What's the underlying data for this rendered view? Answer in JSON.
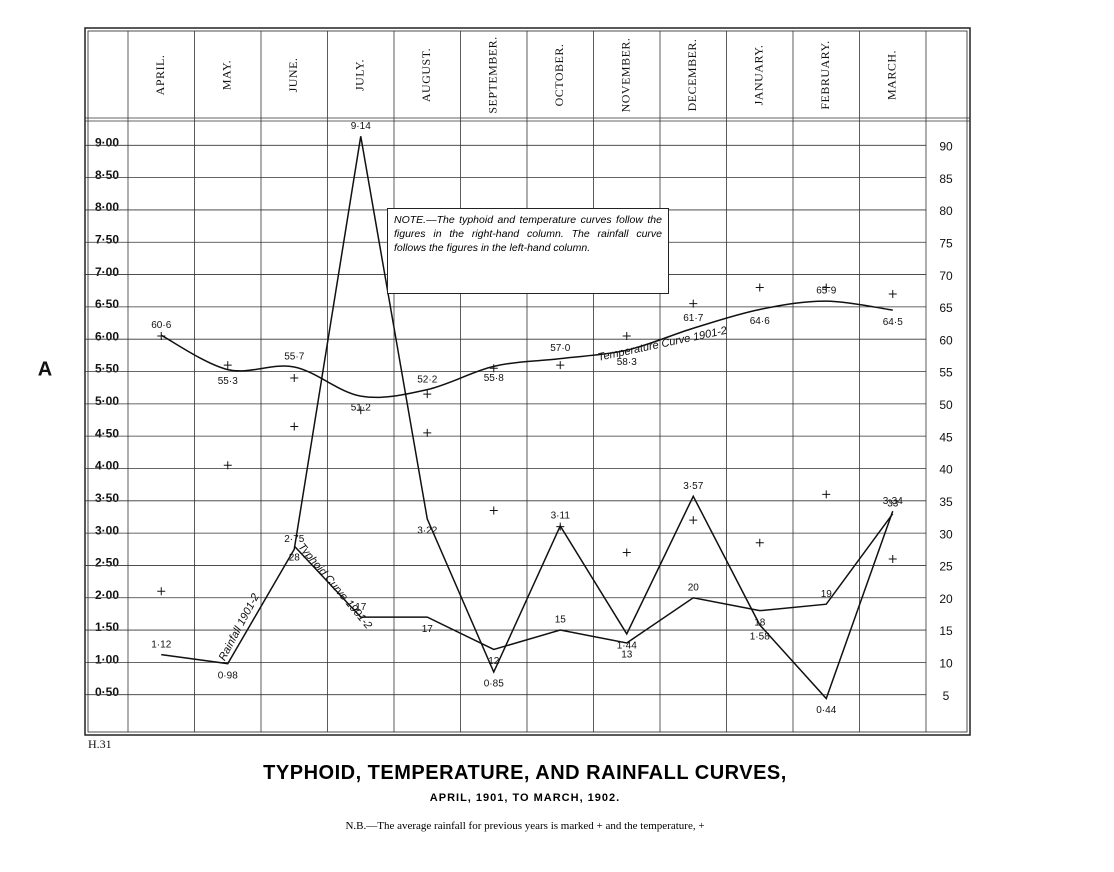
{
  "chart_data": {
    "type": "line",
    "title": "TYPHOID, TEMPERATURE, AND RAINFALL CURVES,",
    "subtitle": "APRIL, 1901, TO MARCH, 1902.",
    "footnote": "N.B.—The average rainfall for previous years is marked + and the temperature, +",
    "note": "NOTE.—The typhoid and temperature curves follow the figures in the right-hand column. The rainfall curve follows the figures in the left-hand column.",
    "side_mark": "A",
    "plate": "H.31",
    "categories": [
      "APRIL.",
      "MAY.",
      "JUNE.",
      "JULY.",
      "AUGUST.",
      "SEPTEMBER.",
      "OCTOBER.",
      "NOVEMBER.",
      "DECEMBER.",
      "JANUARY.",
      "FEBRUARY.",
      "MARCH."
    ],
    "ylim": [
      0,
      9.5
    ],
    "yticks": [
      {
        "value": 0.5,
        "label": "0·50"
      },
      {
        "value": 1,
        "label": "1·00"
      },
      {
        "value": 1.5,
        "label": "1·50"
      },
      {
        "value": 2,
        "label": "2·00"
      },
      {
        "value": 2.5,
        "label": "2·50"
      },
      {
        "value": 3,
        "label": "3·00"
      },
      {
        "value": 3.5,
        "label": "3·50"
      },
      {
        "value": 4,
        "label": "4·00"
      },
      {
        "value": 4.5,
        "label": "4·50"
      },
      {
        "value": 5,
        "label": "5·00"
      },
      {
        "value": 5.5,
        "label": "5·50"
      },
      {
        "value": 6,
        "label": "6·00"
      },
      {
        "value": 6.5,
        "label": "6·50"
      },
      {
        "value": 7,
        "label": "7·00"
      },
      {
        "value": 7.5,
        "label": "7·50"
      },
      {
        "value": 8,
        "label": "8·00"
      },
      {
        "value": 8.5,
        "label": "8·50"
      },
      {
        "value": 9,
        "label": "9·00"
      }
    ],
    "y2lim": [
      0,
      95
    ],
    "y2ticks": [
      5,
      10,
      15,
      20,
      25,
      30,
      35,
      40,
      45,
      50,
      55,
      60,
      65,
      70,
      75,
      80,
      85,
      90
    ],
    "grid": true,
    "series": [
      {
        "name": "Rainfall 1901-2",
        "color": "#111111",
        "style": "line",
        "values": [
          1.12,
          0.98,
          2.75,
          9.14,
          3.22,
          0.85,
          3.11,
          1.44,
          3.57,
          1.58,
          0.44,
          3.34
        ],
        "value_labels": [
          "1·12",
          "0·98",
          "2·75",
          "9·14",
          "3·22",
          "0·85",
          "3·11",
          "1·44",
          "3·57",
          "1·58",
          "0·44",
          "3·34"
        ]
      },
      {
        "name": "Typhoid Curve 1901-2",
        "color": "#111111",
        "style": "line",
        "axis": "y2",
        "values": [
          null,
          null,
          28,
          17,
          17,
          12,
          15,
          13,
          20,
          18,
          19,
          33
        ]
      },
      {
        "name": "Temperature Curve 1901-2",
        "color": "#111111",
        "style": "smooth",
        "axis": "y2",
        "values": [
          60.6,
          55.3,
          55.7,
          51.2,
          52.2,
          55.8,
          57.0,
          58.3,
          61.7,
          64.6,
          65.9,
          64.5
        ],
        "value_labels": [
          "60·6",
          "55·3",
          "55·7",
          "51·2",
          "52·2",
          "55·8",
          "57·0",
          "58·3",
          "61·7",
          "64·6",
          "65·9",
          "64·5"
        ]
      },
      {
        "color": "#111111",
        "style": "markers",
        "values": [
          2.1,
          4.05,
          4.65,
          null,
          4.55,
          3.35,
          3.1,
          2.7,
          3.2,
          2.85,
          3.6,
          2.6
        ]
      },
      {
        "color": "#111111",
        "style": "markers",
        "axis": "y2",
        "values": [
          60.5,
          56,
          54,
          49,
          51.5,
          55.5,
          56,
          60.5,
          65.5,
          68,
          68,
          67
        ]
      }
    ]
  }
}
